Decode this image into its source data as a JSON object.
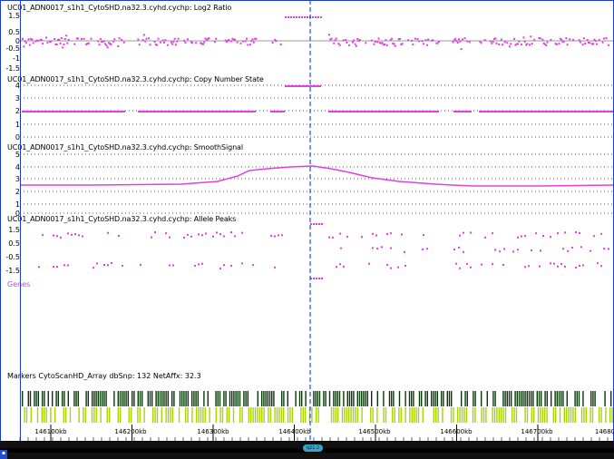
{
  "tracks": [
    {
      "title": "UC01_ADN0017_s1h1_CytoSHD.na32.3.cyhd.cychp: Log2 Ratio",
      "ticks": [
        "1.5",
        "0.5",
        "0",
        "-0.5",
        "-1",
        "-1.5"
      ]
    },
    {
      "title": "UC01_ADN0017_s1h1_CytoSHD.na32.3.cyhd.cychp: Copy Number State",
      "ticks": [
        "4",
        "3",
        "2",
        "1",
        "0"
      ]
    },
    {
      "title": "UC01_ADN0017_s1h1_CytoSHD.na32.3.cyhd.cychp: SmoothSignal",
      "ticks": [
        "5",
        "4",
        "3",
        "2",
        "1",
        "0"
      ]
    },
    {
      "title": "UC01_ADN0017_s1h1_CytoSHD.na32.3.cyhd.cychp: Allele Peaks",
      "ticks": [
        "1.5",
        "0.5",
        "-0.5",
        "-1.5"
      ]
    }
  ],
  "genes_label": "Genes",
  "markers_label": "Markers CytoScanHD_Array dbSnp: 132 NetAffx: 32.3",
  "scale": {
    "labels": [
      "146100kb",
      "146200kb",
      "146300kb",
      "146400kb",
      "146500kb",
      "146600kb",
      "146700kb",
      "14680"
    ]
  },
  "cytoband_label": "q21.2",
  "colors": {
    "data": "#e040e0",
    "cursor": "#1a4fd8",
    "marker_dark": "#0a3a0a",
    "marker_light": "#a8d400",
    "frame": "#1a3ad8"
  }
}
